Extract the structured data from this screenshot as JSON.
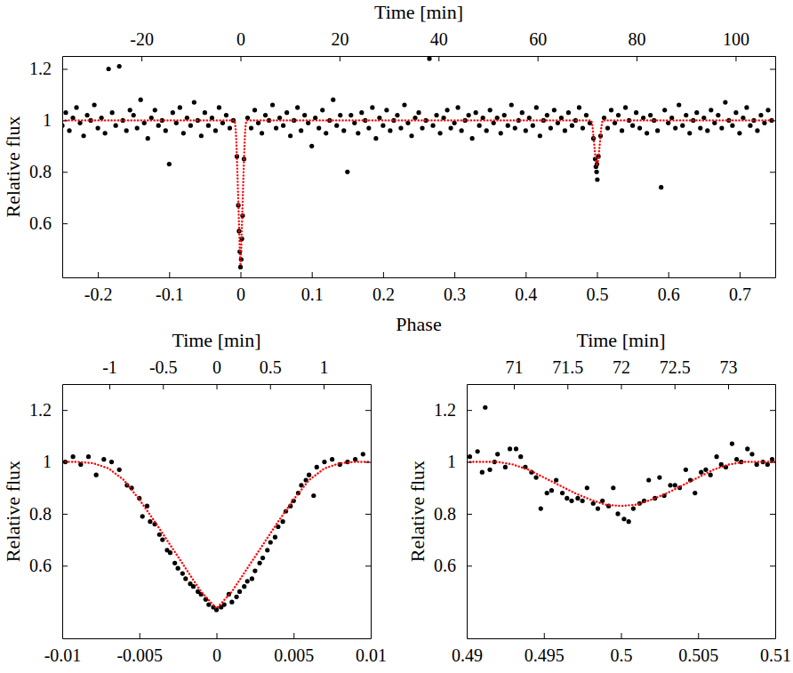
{
  "chart_data": [
    {
      "type": "scatter",
      "xlabel": "Phase",
      "ylabel": "Relative flux",
      "x2label": "Time [min]",
      "xlim": [
        -0.25,
        0.75
      ],
      "xticks": [
        -0.2,
        -0.1,
        0,
        0.1,
        0.2,
        0.3,
        0.4,
        0.5,
        0.6,
        0.7
      ],
      "x2lim": [
        -36,
        108
      ],
      "x2ticks": [
        -20,
        0,
        20,
        40,
        60,
        80,
        100
      ],
      "ylim": [
        0.39,
        1.25
      ],
      "yticks": [
        0.6,
        0.8,
        1,
        1.2
      ],
      "series": [
        {
          "type": "scatter",
          "color": "#000000",
          "marker": "circle",
          "x": [
            -0.25,
            -0.245,
            -0.24,
            -0.235,
            -0.23,
            -0.225,
            -0.22,
            -0.215,
            -0.21,
            -0.205,
            -0.2,
            -0.195,
            -0.19,
            -0.185,
            -0.18,
            -0.175,
            -0.17,
            -0.165,
            -0.16,
            -0.155,
            -0.15,
            -0.145,
            -0.14,
            -0.135,
            -0.13,
            -0.125,
            -0.12,
            -0.115,
            -0.11,
            -0.105,
            -0.1,
            -0.095,
            -0.09,
            -0.085,
            -0.08,
            -0.075,
            -0.07,
            -0.065,
            -0.06,
            -0.055,
            -0.05,
            -0.045,
            -0.04,
            -0.035,
            -0.03,
            -0.025,
            -0.02,
            -0.015,
            -0.01,
            -0.005,
            0,
            0.005,
            0.01,
            0.015,
            0.02,
            0.025,
            0.03,
            0.035,
            0.04,
            0.045,
            0.05,
            0.055,
            0.06,
            0.065,
            0.07,
            0.075,
            0.08,
            0.085,
            0.09,
            0.095,
            0.1,
            0.105,
            0.11,
            0.115,
            0.12,
            0.125,
            0.13,
            0.135,
            0.14,
            0.145,
            0.15,
            0.155,
            0.16,
            0.165,
            0.17,
            0.175,
            0.18,
            0.185,
            0.19,
            0.195,
            0.2,
            0.205,
            0.21,
            0.215,
            0.22,
            0.225,
            0.23,
            0.235,
            0.24,
            0.245,
            0.25,
            0.255,
            0.26,
            0.265,
            0.27,
            0.275,
            0.28,
            0.285,
            0.29,
            0.295,
            0.3,
            0.305,
            0.31,
            0.315,
            0.32,
            0.325,
            0.33,
            0.335,
            0.34,
            0.345,
            0.35,
            0.355,
            0.36,
            0.365,
            0.37,
            0.375,
            0.38,
            0.385,
            0.39,
            0.395,
            0.4,
            0.405,
            0.41,
            0.415,
            0.42,
            0.425,
            0.43,
            0.435,
            0.44,
            0.445,
            0.45,
            0.455,
            0.46,
            0.465,
            0.47,
            0.475,
            0.48,
            0.485,
            0.49,
            0.495,
            0.5,
            0.505,
            0.51,
            0.515,
            0.52,
            0.525,
            0.53,
            0.535,
            0.54,
            0.545,
            0.55,
            0.555,
            0.56,
            0.565,
            0.57,
            0.575,
            0.58,
            0.585,
            0.59,
            0.595,
            0.6,
            0.605,
            0.61,
            0.615,
            0.62,
            0.625,
            0.63,
            0.635,
            0.64,
            0.645,
            0.65,
            0.655,
            0.66,
            0.665,
            0.67,
            0.675,
            0.68,
            0.685,
            0.69,
            0.695,
            0.7,
            0.705,
            0.71,
            0.715,
            0.72,
            0.725,
            0.73,
            0.735,
            0.74,
            0.745,
            -0.003,
            -0.002,
            -0.001,
            0.001,
            0.002,
            0.003,
            0.4975,
            0.4985,
            0.4995,
            0.5005,
            0.502
          ],
          "values": [
            0.98,
            1.03,
            0.96,
            1.01,
            1.05,
            0.99,
            0.94,
            1.02,
            1.0,
            1.06,
            0.97,
            1.01,
            0.95,
            1.2,
            1.03,
            0.98,
            1.21,
            1.0,
            0.96,
            1.04,
            1.02,
            0.97,
            1.08,
            0.99,
            0.93,
            1.01,
            1.04,
            0.98,
            1.0,
            0.96,
            0.83,
            1.03,
            0.99,
            1.05,
            0.95,
            1.01,
            0.98,
            1.07,
            1.0,
            0.94,
            1.03,
            0.98,
            1.01,
            0.96,
            1.05,
            0.99,
            1.02,
            0.97,
            1.0,
            0.86,
            0.43,
            0.85,
            1.01,
            0.97,
            1.04,
            0.99,
            0.95,
            1.02,
            1.0,
            1.06,
            0.97,
            1.01,
            0.98,
            1.03,
            0.94,
            1.0,
            1.05,
            0.96,
            1.02,
            0.99,
            0.9,
            1.01,
            0.97,
            1.04,
            0.95,
            1.0,
            1.08,
            0.98,
            1.02,
            0.96,
            0.8,
            1.02,
            0.99,
            0.95,
            1.03,
            1.0,
            0.97,
            1.05,
            0.93,
            1.01,
            0.98,
            1.04,
            0.96,
            1.0,
            1.02,
            0.97,
            1.06,
            0.99,
            0.94,
            1.01,
            1.03,
            0.97,
            1.0,
            1.24,
            0.98,
            1.02,
            0.95,
            1.01,
            1.04,
            0.97,
            0.99,
            1.05,
            0.96,
            1.0,
            1.02,
            0.93,
            1.03,
            0.98,
            1.01,
            0.96,
            1.04,
            0.99,
            1.01,
            0.95,
            1.02,
            0.98,
            1.06,
            0.97,
            1.0,
            1.03,
            0.96,
            1.01,
            0.98,
            1.05,
            0.94,
            1.0,
            1.02,
            0.97,
            1.04,
            0.99,
            1.01,
            0.96,
            1.03,
            0.98,
            1.0,
            1.05,
            0.97,
            1.02,
            0.99,
            0.93,
            0.83,
            0.94,
            1.01,
            0.97,
            1.04,
            0.99,
            1.02,
            0.96,
            1.05,
            1.0,
            0.98,
            1.03,
            0.97,
            1.01,
            0.95,
            1.02,
            1.0,
            0.96,
            0.74,
            1.04,
            0.99,
            1.01,
            0.97,
            1.06,
            0.98,
            1.02,
            0.95,
            1.0,
            1.03,
            0.97,
            1.01,
            0.96,
            1.04,
            0.99,
            1.02,
            0.97,
            1.07,
            1.0,
            0.98,
            1.03,
            0.95,
            1.01,
            1.05,
            0.98,
            1.0,
            0.96,
            1.02,
            0.99,
            1.04,
            1.0,
            0.67,
            0.57,
            0.49,
            0.46,
            0.54,
            0.63,
            0.85,
            0.82,
            0.8,
            0.77,
            0.86
          ]
        },
        {
          "type": "line",
          "color": "#ff0000",
          "line_style": "dotted",
          "x": [
            -0.25,
            -0.01,
            -0.009,
            -0.008,
            -0.007,
            -0.006,
            -0.005,
            -0.004,
            -0.003,
            -0.002,
            -0.001,
            0,
            0.001,
            0.002,
            0.003,
            0.004,
            0.005,
            0.006,
            0.007,
            0.008,
            0.009,
            0.01,
            0.49,
            0.491,
            0.492,
            0.493,
            0.494,
            0.495,
            0.496,
            0.497,
            0.498,
            0.499,
            0.5,
            0.501,
            0.502,
            0.503,
            0.504,
            0.505,
            0.506,
            0.507,
            0.508,
            0.509,
            0.51,
            0.75
          ],
          "values": [
            1,
            1,
            1,
            0.995,
            0.975,
            0.93,
            0.855,
            0.77,
            0.68,
            0.59,
            0.5,
            0.435,
            0.5,
            0.59,
            0.68,
            0.77,
            0.855,
            0.93,
            0.975,
            0.995,
            1,
            1,
            1,
            1,
            1,
            0.99,
            0.97,
            0.94,
            0.91,
            0.88,
            0.855,
            0.835,
            0.83,
            0.835,
            0.855,
            0.88,
            0.91,
            0.94,
            0.97,
            0.99,
            1,
            1,
            1,
            1
          ]
        }
      ]
    },
    {
      "type": "scatter",
      "xlabel": "Phase",
      "ylabel": "Relative flux",
      "x2label": "Time [min]",
      "xlim": [
        -0.01,
        0.01
      ],
      "xticks": [
        -0.01,
        -0.005,
        0,
        0.005,
        0.01
      ],
      "x2lim": [
        -1.44,
        1.44
      ],
      "x2ticks": [
        -1,
        -0.5,
        0,
        0.5,
        1
      ],
      "ylim": [
        0.32,
        1.3
      ],
      "yticks": [
        0.6,
        0.8,
        1,
        1.2
      ],
      "series": [
        {
          "type": "scatter",
          "color": "#000000",
          "marker": "circle",
          "x": [
            -0.0098,
            -0.0093,
            -0.0088,
            -0.0083,
            -0.0078,
            -0.0073,
            -0.0068,
            -0.0063,
            -0.0058,
            -0.0055,
            -0.005,
            -0.0048,
            -0.0045,
            -0.0043,
            -0.004,
            -0.0037,
            -0.0035,
            -0.0032,
            -0.003,
            -0.0027,
            -0.0025,
            -0.0022,
            -0.002,
            -0.0017,
            -0.0015,
            -0.0012,
            -0.001,
            -0.0007,
            -0.0005,
            -0.0002,
            0,
            0.0003,
            0.0005,
            0.0008,
            0.001,
            0.0013,
            0.0015,
            0.0018,
            0.002,
            0.0023,
            0.0025,
            0.0028,
            0.003,
            0.0033,
            0.0035,
            0.0038,
            0.004,
            0.0043,
            0.0045,
            0.0048,
            0.005,
            0.0053,
            0.0055,
            0.0058,
            0.006,
            0.0063,
            0.0065,
            0.007,
            0.0075,
            0.008,
            0.0085,
            0.009,
            0.0095
          ],
          "values": [
            1.0,
            1.02,
            0.99,
            1.02,
            0.95,
            1.01,
            1.0,
            0.97,
            0.91,
            0.9,
            0.86,
            0.79,
            0.83,
            0.77,
            0.76,
            0.72,
            0.7,
            0.66,
            0.65,
            0.61,
            0.59,
            0.57,
            0.55,
            0.53,
            0.52,
            0.5,
            0.49,
            0.47,
            0.45,
            0.44,
            0.43,
            0.44,
            0.45,
            0.49,
            0.46,
            0.48,
            0.5,
            0.52,
            0.54,
            0.55,
            0.58,
            0.61,
            0.63,
            0.66,
            0.69,
            0.71,
            0.75,
            0.77,
            0.81,
            0.83,
            0.85,
            0.88,
            0.91,
            0.93,
            0.95,
            0.87,
            0.98,
            1.0,
            1.01,
            0.99,
            1.0,
            1.01,
            1.03
          ]
        },
        {
          "type": "line",
          "color": "#ff0000",
          "line_style": "dotted",
          "x": [
            -0.01,
            -0.009,
            -0.008,
            -0.007,
            -0.006,
            -0.005,
            -0.004,
            -0.003,
            -0.002,
            -0.001,
            0,
            0.001,
            0.002,
            0.003,
            0.004,
            0.005,
            0.006,
            0.007,
            0.008,
            0.009,
            0.01
          ],
          "values": [
            1,
            1,
            0.995,
            0.975,
            0.93,
            0.855,
            0.77,
            0.68,
            0.59,
            0.5,
            0.435,
            0.5,
            0.59,
            0.68,
            0.77,
            0.855,
            0.93,
            0.975,
            0.995,
            1,
            1
          ]
        }
      ]
    },
    {
      "type": "scatter",
      "xlabel": "Phase",
      "ylabel": "Relative flux",
      "x2label": "Time [min]",
      "xlim": [
        0.49,
        0.51
      ],
      "xticks": [
        0.49,
        0.495,
        0.5,
        0.505,
        0.51
      ],
      "x2lim": [
        70.56,
        73.44
      ],
      "x2ticks": [
        71,
        71.5,
        72,
        72.5,
        73
      ],
      "ylim": [
        0.32,
        1.3
      ],
      "yticks": [
        0.6,
        0.8,
        1,
        1.2
      ],
      "series": [
        {
          "type": "scatter",
          "color": "#000000",
          "marker": "circle",
          "x": [
            0.4902,
            0.4907,
            0.491,
            0.4912,
            0.4915,
            0.4918,
            0.492,
            0.4925,
            0.4928,
            0.4932,
            0.4935,
            0.4938,
            0.4942,
            0.4945,
            0.4948,
            0.4952,
            0.4955,
            0.4958,
            0.4962,
            0.4965,
            0.4968,
            0.4972,
            0.4975,
            0.4978,
            0.4982,
            0.4985,
            0.4988,
            0.4992,
            0.4995,
            0.4998,
            0.5002,
            0.5005,
            0.5008,
            0.5012,
            0.5015,
            0.5018,
            0.5022,
            0.5025,
            0.5028,
            0.5032,
            0.5035,
            0.5038,
            0.5042,
            0.5045,
            0.5048,
            0.5052,
            0.5055,
            0.5058,
            0.5062,
            0.5065,
            0.5068,
            0.5072,
            0.5075,
            0.5078,
            0.5082,
            0.5085,
            0.5088,
            0.5092,
            0.5095,
            0.5098
          ],
          "values": [
            1.02,
            1.04,
            0.96,
            1.21,
            0.97,
            1.0,
            1.03,
            0.98,
            1.05,
            1.05,
            1.02,
            0.98,
            0.96,
            0.94,
            0.82,
            0.88,
            0.89,
            0.93,
            0.88,
            0.86,
            0.85,
            0.86,
            0.85,
            0.9,
            0.84,
            0.82,
            0.85,
            0.83,
            0.9,
            0.8,
            0.78,
            0.77,
            0.82,
            0.84,
            0.85,
            0.93,
            0.86,
            0.94,
            0.87,
            0.91,
            0.91,
            0.9,
            0.97,
            0.93,
            0.88,
            0.96,
            0.97,
            0.95,
            1.02,
            0.99,
            0.98,
            1.07,
            1.01,
            1.0,
            1.05,
            1.03,
            0.99,
            1.0,
            0.99,
            1.01
          ]
        },
        {
          "type": "line",
          "color": "#ff0000",
          "line_style": "dotted",
          "x": [
            0.49,
            0.491,
            0.492,
            0.493,
            0.494,
            0.495,
            0.496,
            0.497,
            0.498,
            0.499,
            0.5,
            0.501,
            0.502,
            0.503,
            0.504,
            0.505,
            0.506,
            0.507,
            0.508,
            0.509,
            0.51
          ],
          "values": [
            1,
            1,
            1,
            0.99,
            0.97,
            0.94,
            0.91,
            0.88,
            0.855,
            0.835,
            0.83,
            0.835,
            0.855,
            0.88,
            0.91,
            0.94,
            0.97,
            0.99,
            1,
            1,
            1
          ]
        }
      ]
    }
  ]
}
